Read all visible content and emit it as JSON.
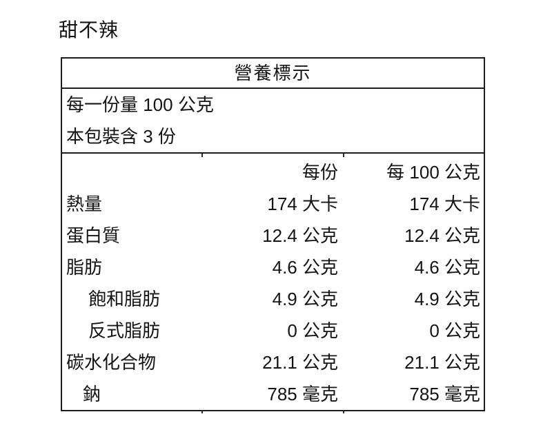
{
  "page_title": "甜不辣",
  "nutrition_table": {
    "title": "營養標示",
    "serving_size_line": "每一份量 100 公克",
    "servings_per_pack_line": "本包裝含 3 份",
    "columns": {
      "per_serving": "每份",
      "per_100g": "每 100 公克"
    },
    "rows": [
      {
        "label": "熱量",
        "per_serving": "174 大卡",
        "per_100g": "174 大卡"
      },
      {
        "label": "蛋白質",
        "per_serving": "12.4 公克",
        "per_100g": "12.4 公克"
      },
      {
        "label": "脂肪",
        "per_serving": "4.6 公克",
        "per_100g": "4.6 公克"
      },
      {
        "label": "飽和脂肪",
        "per_serving": "4.9 公克",
        "per_100g": "4.9 公克"
      },
      {
        "label": "反式脂肪",
        "per_serving": "0 公克",
        "per_100g": "0 公克"
      },
      {
        "label": "碳水化合物",
        "per_serving": "21.1 公克",
        "per_100g": "21.1 公克"
      },
      {
        "label": "鈉",
        "per_serving": "785 毫克",
        "per_100g": "785 毫克"
      }
    ]
  }
}
